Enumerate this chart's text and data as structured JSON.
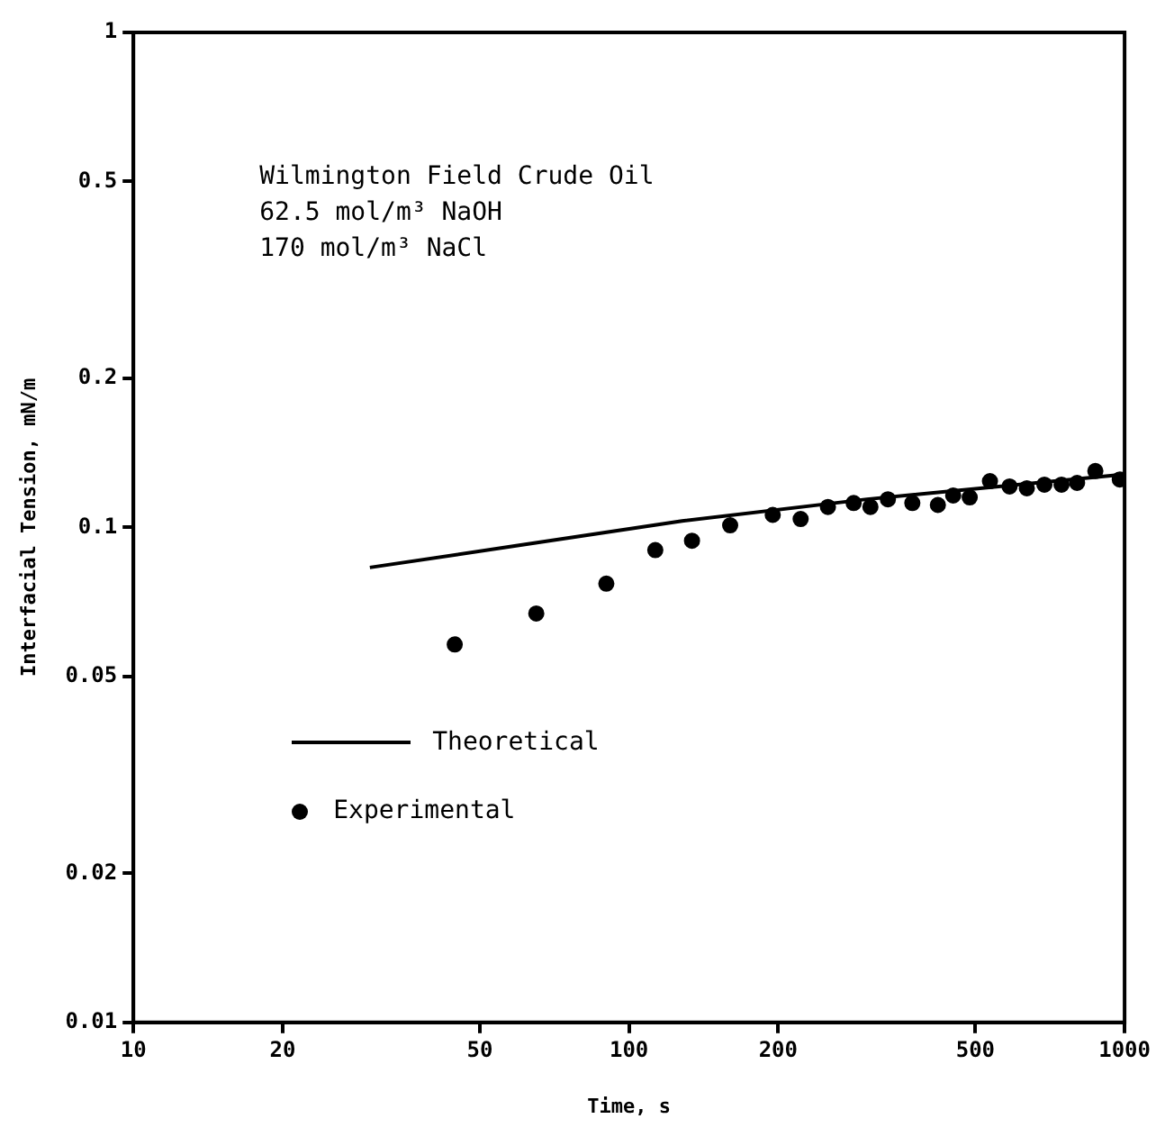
{
  "chart_data": {
    "type": "scatter",
    "xlabel": "Time, s",
    "ylabel": "Interfacial Tension, mN/m",
    "log": "xy",
    "grid": false,
    "legend": "bottom left",
    "xlim": [
      10,
      1000
    ],
    "xticks": [
      10,
      20,
      50,
      100,
      200,
      500,
      1000
    ],
    "ylim": [
      0.01,
      1
    ],
    "yticks": [
      0.01,
      0.02,
      0.05,
      0.1,
      0.2,
      0.5,
      1
    ],
    "annotations": [
      "Wilmington Field Crude Oil",
      "62.5 mol/m³ NaOH",
      "170 mol/m³ NaCl"
    ],
    "series": [
      {
        "name": "Theoretical",
        "type": "line",
        "marker": "none",
        "line_style": "solid",
        "color": "#000000",
        "x": [
          30,
          60,
          128,
          302,
          1000
        ],
        "values": [
          0.083,
          0.092,
          0.103,
          0.114,
          0.128
        ]
      },
      {
        "name": "Experimental",
        "marker": "circle",
        "color": "#000000",
        "x": [
          44.5,
          65,
          90,
          113,
          134,
          160,
          195,
          222,
          252,
          284,
          307,
          333,
          373,
          420,
          451,
          487,
          535,
          586,
          635,
          689,
          746,
          802,
          873,
          978
        ],
        "values": [
          0.058,
          0.067,
          0.077,
          0.09,
          0.094,
          0.101,
          0.106,
          0.104,
          0.11,
          0.112,
          0.11,
          0.114,
          0.112,
          0.111,
          0.116,
          0.115,
          0.124,
          0.121,
          0.12,
          0.122,
          0.122,
          0.123,
          0.13,
          0.125
        ]
      }
    ]
  }
}
